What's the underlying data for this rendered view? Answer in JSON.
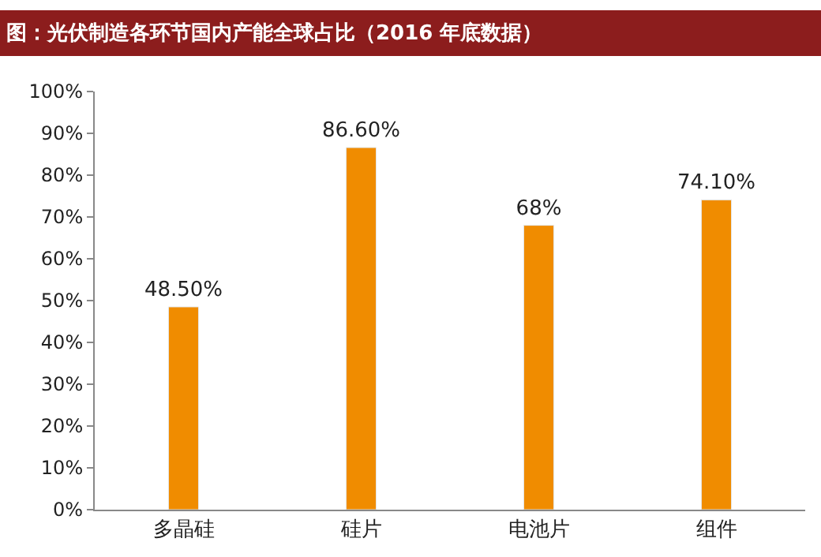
{
  "chart_data": {
    "type": "bar",
    "title": "图：光伏制造各环节国内产能全球占比（2016 年底数据）",
    "categories": [
      "多晶硅",
      "硅片",
      "电池片",
      "组件"
    ],
    "values": [
      48.5,
      86.6,
      68,
      74.1
    ],
    "value_labels": [
      "48.50%",
      "86.60%",
      "68%",
      "74.10%"
    ],
    "color": "#f08c00",
    "ylim": [
      0,
      100
    ],
    "yticks": [
      {
        "value": 0,
        "label": "0%"
      },
      {
        "value": 10,
        "label": "10%"
      },
      {
        "value": 20,
        "label": "20%"
      },
      {
        "value": 30,
        "label": "30%"
      },
      {
        "value": 40,
        "label": "40%"
      },
      {
        "value": 50,
        "label": "50%"
      },
      {
        "value": 60,
        "label": "60%"
      },
      {
        "value": 70,
        "label": "70%"
      },
      {
        "value": 80,
        "label": "80%"
      },
      {
        "value": 90,
        "label": "90%"
      },
      {
        "value": 100,
        "label": "100%"
      }
    ],
    "legend": false
  }
}
